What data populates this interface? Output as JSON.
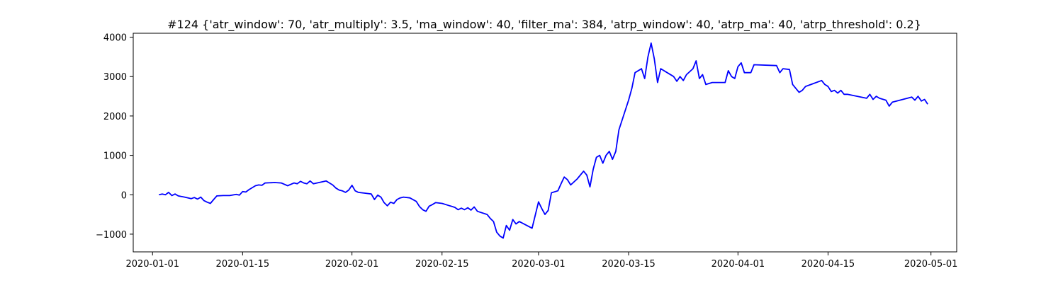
{
  "chart_data": {
    "type": "line",
    "title": "#124 {'atr_window': 70, 'atr_multiply': 3.5, 'ma_window': 40, 'filter_ma': 384, 'atrp_window': 40, 'atrp_ma': 40, 'atrp_threshold': 0.2}",
    "xlabel": "",
    "ylabel": "",
    "x_type": "date",
    "xlim": [
      "2019-12-29",
      "2020-05-05"
    ],
    "ylim": [
      -1450,
      4100
    ],
    "x_ticks": [
      "2020-01-01",
      "2020-01-15",
      "2020-02-01",
      "2020-02-15",
      "2020-03-01",
      "2020-03-15",
      "2020-04-01",
      "2020-04-15",
      "2020-05-01"
    ],
    "y_ticks": [
      -1000,
      0,
      1000,
      2000,
      3000,
      4000
    ],
    "grid": false,
    "series": [
      {
        "color": "#0000ff",
        "points": [
          [
            "2020-01-02",
            0
          ],
          [
            "2020-01-02 12:00",
            20
          ],
          [
            "2020-01-03",
            0
          ],
          [
            "2020-01-03 12:00",
            60
          ],
          [
            "2020-01-04",
            -20
          ],
          [
            "2020-01-04 12:00",
            20
          ],
          [
            "2020-01-05",
            -30
          ],
          [
            "2020-01-06",
            -60
          ],
          [
            "2020-01-07",
            -100
          ],
          [
            "2020-01-07 12:00",
            -70
          ],
          [
            "2020-01-08",
            -110
          ],
          [
            "2020-01-08 12:00",
            -60
          ],
          [
            "2020-01-09",
            -150
          ],
          [
            "2020-01-09 12:00",
            -190
          ],
          [
            "2020-01-10",
            -220
          ],
          [
            "2020-01-10 12:00",
            -120
          ],
          [
            "2020-01-11",
            -30
          ],
          [
            "2020-01-12",
            -20
          ],
          [
            "2020-01-13",
            -20
          ],
          [
            "2020-01-14",
            10
          ],
          [
            "2020-01-14 12:00",
            -10
          ],
          [
            "2020-01-15",
            80
          ],
          [
            "2020-01-15 12:00",
            70
          ],
          [
            "2020-01-16",
            130
          ],
          [
            "2020-01-17",
            230
          ],
          [
            "2020-01-17 12:00",
            250
          ],
          [
            "2020-01-18",
            240
          ],
          [
            "2020-01-18 12:00",
            300
          ],
          [
            "2020-01-20",
            310
          ],
          [
            "2020-01-21",
            300
          ],
          [
            "2020-01-22",
            230
          ],
          [
            "2020-01-23",
            300
          ],
          [
            "2020-01-23 12:00",
            280
          ],
          [
            "2020-01-24",
            340
          ],
          [
            "2020-01-24 12:00",
            300
          ],
          [
            "2020-01-25",
            280
          ],
          [
            "2020-01-25 12:00",
            350
          ],
          [
            "2020-01-26",
            280
          ],
          [
            "2020-01-28",
            350
          ],
          [
            "2020-01-28 12:00",
            300
          ],
          [
            "2020-01-29",
            250
          ],
          [
            "2020-01-29 12:00",
            170
          ],
          [
            "2020-01-30",
            120
          ],
          [
            "2020-01-30 12:00",
            100
          ],
          [
            "2020-01-31",
            60
          ],
          [
            "2020-01-31 12:00",
            120
          ],
          [
            "2020-02-01",
            240
          ],
          [
            "2020-02-01 12:00",
            100
          ],
          [
            "2020-02-02",
            60
          ],
          [
            "2020-02-03",
            40
          ],
          [
            "2020-02-04",
            20
          ],
          [
            "2020-02-04 12:00",
            -120
          ],
          [
            "2020-02-05",
            -10
          ],
          [
            "2020-02-05 12:00",
            -60
          ],
          [
            "2020-02-06",
            -200
          ],
          [
            "2020-02-06 12:00",
            -280
          ],
          [
            "2020-02-07",
            -190
          ],
          [
            "2020-02-07 12:00",
            -220
          ],
          [
            "2020-02-08",
            -120
          ],
          [
            "2020-02-08 12:00",
            -80
          ],
          [
            "2020-02-09",
            -60
          ],
          [
            "2020-02-10",
            -80
          ],
          [
            "2020-02-11",
            -170
          ],
          [
            "2020-02-11 12:00",
            -300
          ],
          [
            "2020-02-12",
            -380
          ],
          [
            "2020-02-12 12:00",
            -420
          ],
          [
            "2020-02-13",
            -290
          ],
          [
            "2020-02-13 12:00",
            -250
          ],
          [
            "2020-02-14",
            -200
          ],
          [
            "2020-02-15",
            -220
          ],
          [
            "2020-02-16",
            -270
          ],
          [
            "2020-02-17",
            -320
          ],
          [
            "2020-02-17 12:00",
            -380
          ],
          [
            "2020-02-18",
            -340
          ],
          [
            "2020-02-18 12:00",
            -380
          ],
          [
            "2020-02-19",
            -330
          ],
          [
            "2020-02-19 12:00",
            -390
          ],
          [
            "2020-02-20",
            -310
          ],
          [
            "2020-02-20 12:00",
            -420
          ],
          [
            "2020-02-22",
            -500
          ],
          [
            "2020-02-22 12:00",
            -600
          ],
          [
            "2020-02-23",
            -680
          ],
          [
            "2020-02-23 12:00",
            -950
          ],
          [
            "2020-02-24",
            -1050
          ],
          [
            "2020-02-24 12:00",
            -1100
          ],
          [
            "2020-02-25",
            -780
          ],
          [
            "2020-02-25 12:00",
            -900
          ],
          [
            "2020-02-26",
            -630
          ],
          [
            "2020-02-26 12:00",
            -740
          ],
          [
            "2020-02-27",
            -680
          ],
          [
            "2020-02-29",
            -850
          ],
          [
            "2020-03-01",
            -180
          ],
          [
            "2020-03-01 12:00",
            -350
          ],
          [
            "2020-03-02",
            -500
          ],
          [
            "2020-03-02 12:00",
            -400
          ],
          [
            "2020-03-03",
            50
          ],
          [
            "2020-03-04",
            100
          ],
          [
            "2020-03-04 12:00",
            280
          ],
          [
            "2020-03-05",
            450
          ],
          [
            "2020-03-05 12:00",
            380
          ],
          [
            "2020-03-06",
            250
          ],
          [
            "2020-03-07",
            400
          ],
          [
            "2020-03-08",
            600
          ],
          [
            "2020-03-08 12:00",
            500
          ],
          [
            "2020-03-09",
            200
          ],
          [
            "2020-03-09 12:00",
            650
          ],
          [
            "2020-03-10",
            950
          ],
          [
            "2020-03-10 12:00",
            1000
          ],
          [
            "2020-03-11",
            800
          ],
          [
            "2020-03-11 12:00",
            1000
          ],
          [
            "2020-03-12",
            1100
          ],
          [
            "2020-03-12 12:00",
            900
          ],
          [
            "2020-03-13",
            1100
          ],
          [
            "2020-03-13 12:00",
            1650
          ],
          [
            "2020-03-15",
            2400
          ],
          [
            "2020-03-15 12:00",
            2700
          ],
          [
            "2020-03-16",
            3100
          ],
          [
            "2020-03-17",
            3200
          ],
          [
            "2020-03-17 12:00",
            2950
          ],
          [
            "2020-03-18",
            3500
          ],
          [
            "2020-03-18 12:00",
            3850
          ],
          [
            "2020-03-19",
            3450
          ],
          [
            "2020-03-19 12:00",
            2850
          ],
          [
            "2020-03-20",
            3200
          ],
          [
            "2020-03-21",
            3100
          ],
          [
            "2020-03-22",
            3000
          ],
          [
            "2020-03-22 12:00",
            2880
          ],
          [
            "2020-03-23",
            3000
          ],
          [
            "2020-03-23 12:00",
            2900
          ],
          [
            "2020-03-24",
            3050
          ],
          [
            "2020-03-25",
            3200
          ],
          [
            "2020-03-25 12:00",
            3400
          ],
          [
            "2020-03-26",
            2950
          ],
          [
            "2020-03-26 12:00",
            3050
          ],
          [
            "2020-03-27",
            2800
          ],
          [
            "2020-03-28",
            2850
          ],
          [
            "2020-03-30",
            2850
          ],
          [
            "2020-03-30 12:00",
            3150
          ],
          [
            "2020-03-31",
            3000
          ],
          [
            "2020-03-31 12:00",
            2950
          ],
          [
            "2020-04-01",
            3250
          ],
          [
            "2020-04-01 12:00",
            3350
          ],
          [
            "2020-04-02",
            3100
          ],
          [
            "2020-04-03",
            3100
          ],
          [
            "2020-04-03 12:00",
            3300
          ],
          [
            "2020-04-07",
            3280
          ],
          [
            "2020-04-07 12:00",
            3100
          ],
          [
            "2020-04-08",
            3200
          ],
          [
            "2020-04-09",
            3180
          ],
          [
            "2020-04-09 12:00",
            2800
          ],
          [
            "2020-04-10",
            2700
          ],
          [
            "2020-04-10 12:00",
            2600
          ],
          [
            "2020-04-11",
            2650
          ],
          [
            "2020-04-11 12:00",
            2750
          ],
          [
            "2020-04-14",
            2900
          ],
          [
            "2020-04-14 12:00",
            2800
          ],
          [
            "2020-04-15",
            2750
          ],
          [
            "2020-04-15 12:00",
            2620
          ],
          [
            "2020-04-16",
            2650
          ],
          [
            "2020-04-16 12:00",
            2580
          ],
          [
            "2020-04-17",
            2650
          ],
          [
            "2020-04-17 12:00",
            2550
          ],
          [
            "2020-04-18",
            2550
          ],
          [
            "2020-04-21",
            2450
          ],
          [
            "2020-04-21 12:00",
            2550
          ],
          [
            "2020-04-22",
            2420
          ],
          [
            "2020-04-22 12:00",
            2500
          ],
          [
            "2020-04-23",
            2450
          ],
          [
            "2020-04-24",
            2400
          ],
          [
            "2020-04-24 12:00",
            2250
          ],
          [
            "2020-04-25",
            2350
          ],
          [
            "2020-04-28",
            2480
          ],
          [
            "2020-04-28 12:00",
            2400
          ],
          [
            "2020-04-29",
            2500
          ],
          [
            "2020-04-29 12:00",
            2380
          ],
          [
            "2020-04-30",
            2420
          ],
          [
            "2020-04-30 12:00",
            2300
          ]
        ]
      }
    ]
  }
}
